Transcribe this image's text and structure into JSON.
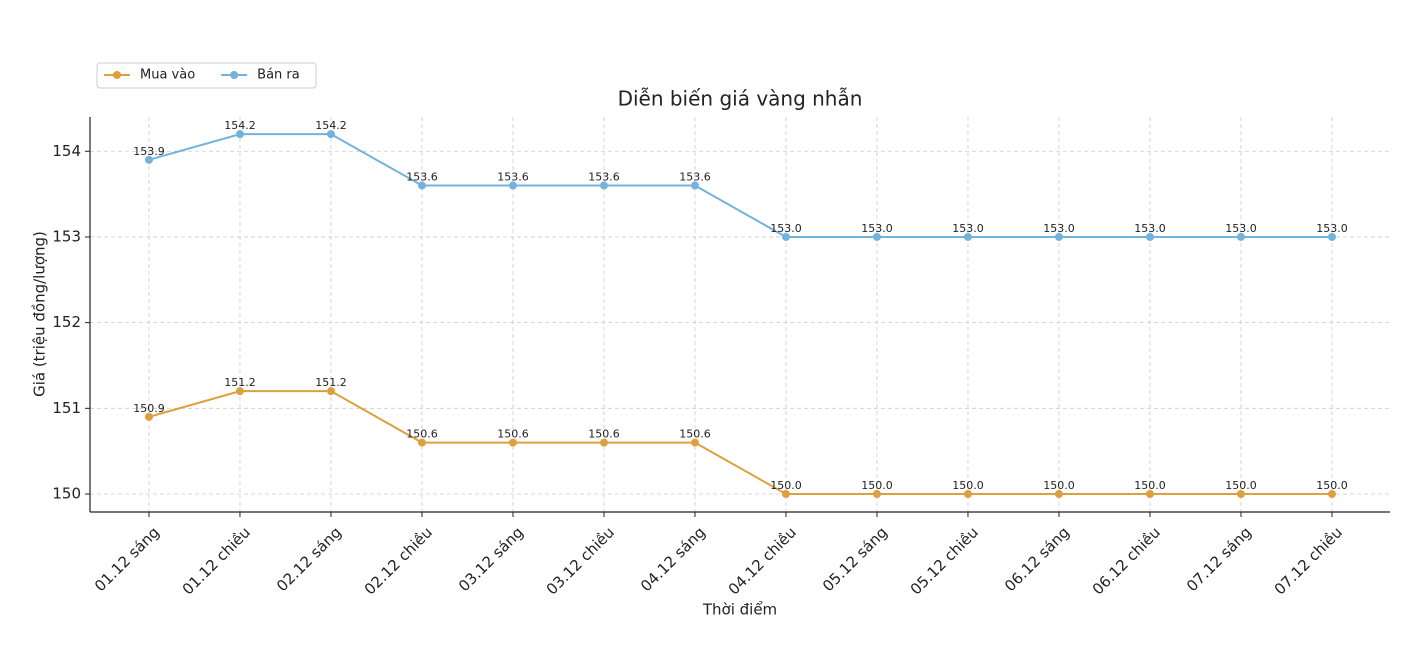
{
  "chart_data": {
    "type": "line",
    "title": "Diễn biến giá vàng nhẫn",
    "x_label": "Thời điểm",
    "y_label": "Giá (triệu đồng/lượng)",
    "categories": [
      "01.12 sáng",
      "01.12 chiều",
      "02.12 sáng",
      "02.12 chiều",
      "03.12 sáng",
      "03.12 chiều",
      "04.12 sáng",
      "04.12 chiều",
      "05.12 sáng",
      "05.12 chiều",
      "06.12 sáng",
      "06.12 chiều",
      "07.12 sáng",
      "07.12 chiều"
    ],
    "series": [
      {
        "name": "Mua vào",
        "color": "#dca03c",
        "values": [
          150.9,
          151.2,
          151.2,
          150.6,
          150.6,
          150.6,
          150.6,
          150,
          150,
          150,
          150,
          150,
          150,
          150
        ],
        "value_labels": [
          "150.9",
          "151.2",
          "151.2",
          "150.6",
          "150.6",
          "150.6",
          "150.6",
          "150.0",
          "150.0",
          "150.0",
          "150.0",
          "150.0",
          "150.0",
          "150.0"
        ]
      },
      {
        "name": "Bán ra",
        "color": "#72b3de",
        "values": [
          153.9,
          154.2,
          154.2,
          153.6,
          153.6,
          153.6,
          153.6,
          153,
          153,
          153,
          153,
          153,
          153,
          153
        ],
        "value_labels": [
          "153.9",
          "154.2",
          "154.2",
          "153.6",
          "153.6",
          "153.6",
          "153.6",
          "153.0",
          "153.0",
          "153.0",
          "153.0",
          "153.0",
          "153.0",
          "153.0"
        ]
      }
    ],
    "ylim": [
      149.79,
      154.4
    ],
    "yticks": [
      150,
      151,
      152,
      153,
      154
    ],
    "grid": true
  }
}
